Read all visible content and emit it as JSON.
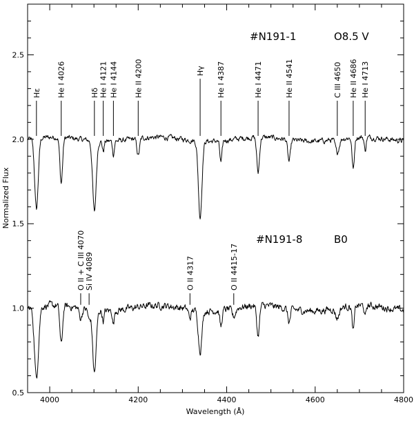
{
  "chart_data": {
    "type": "line",
    "xlabel": "Wavelength (Å)",
    "ylabel": "Normalized Flux",
    "xlim": [
      3950,
      4800
    ],
    "ylim": [
      0.5,
      2.8
    ],
    "x_ticks": [
      4000,
      4200,
      4400,
      4600,
      4800
    ],
    "x_tick_labels": [
      "4000",
      "4200",
      "4400",
      "4600",
      "4800"
    ],
    "x_minor_step": 50,
    "y_ticks": [
      0.5,
      1.0,
      1.5,
      2.0,
      2.5
    ],
    "y_tick_labels": [
      "0.5",
      "1.0",
      "1.5",
      "2.0",
      "2.5"
    ],
    "y_minor_step": 0.1,
    "grid": false,
    "series": [
      {
        "name": "#N191-1",
        "spectral_type": "O8.5 V",
        "continuum": 2.0,
        "noise": 0.015,
        "lines": [
          {
            "w": 3970,
            "depth": 0.42,
            "width": 4
          },
          {
            "w": 4026,
            "depth": 0.27,
            "width": 3
          },
          {
            "w": 4101,
            "depth": 0.42,
            "width": 4
          },
          {
            "w": 4121,
            "depth": 0.06,
            "width": 2
          },
          {
            "w": 4144,
            "depth": 0.08,
            "width": 2
          },
          {
            "w": 4200,
            "depth": 0.1,
            "width": 3
          },
          {
            "w": 4340,
            "depth": 0.45,
            "width": 4
          },
          {
            "w": 4387,
            "depth": 0.13,
            "width": 2.5
          },
          {
            "w": 4471,
            "depth": 0.21,
            "width": 3
          },
          {
            "w": 4541,
            "depth": 0.13,
            "width": 3
          },
          {
            "w": 4650,
            "depth": 0.08,
            "width": 4
          },
          {
            "w": 4686,
            "depth": 0.19,
            "width": 2.5
          },
          {
            "w": 4713,
            "depth": 0.08,
            "width": 2
          }
        ],
        "labels": [
          {
            "text": "Hε",
            "w": 3970,
            "y": 2.22
          },
          {
            "text": "He I 4026",
            "w": 4026,
            "y": 2.22
          },
          {
            "text": "Hδ",
            "w": 4101,
            "y": 2.22
          },
          {
            "text": "He I 4121",
            "w": 4121,
            "y": 2.22
          },
          {
            "text": "He I 4144",
            "w": 4144,
            "y": 2.22
          },
          {
            "text": "He II 4200",
            "w": 4200,
            "y": 2.22
          },
          {
            "text": "Hγ",
            "w": 4340,
            "y": 2.35
          },
          {
            "text": "He I 4387",
            "w": 4387,
            "y": 2.22
          },
          {
            "text": "He I 4471",
            "w": 4471,
            "y": 2.22
          },
          {
            "text": "He II 4541",
            "w": 4541,
            "y": 2.22
          },
          {
            "text": "C III 4650",
            "w": 4650,
            "y": 2.22
          },
          {
            "text": "He II 4686",
            "w": 4686,
            "y": 2.22
          },
          {
            "text": "He I 4713",
            "w": 4713,
            "y": 2.22
          }
        ]
      },
      {
        "name": "#N191-8",
        "spectral_type": "B0",
        "continuum": 1.0,
        "noise": 0.02,
        "lines": [
          {
            "w": 3970,
            "depth": 0.42,
            "width": 4.5
          },
          {
            "w": 4026,
            "depth": 0.23,
            "width": 3
          },
          {
            "w": 4070,
            "depth": 0.06,
            "width": 3
          },
          {
            "w": 4089,
            "depth": 0.06,
            "width": 2.5
          },
          {
            "w": 4101,
            "depth": 0.37,
            "width": 4
          },
          {
            "w": 4121,
            "depth": 0.06,
            "width": 2
          },
          {
            "w": 4144,
            "depth": 0.08,
            "width": 2
          },
          {
            "w": 4317,
            "depth": 0.05,
            "width": 3
          },
          {
            "w": 4340,
            "depth": 0.24,
            "width": 4
          },
          {
            "w": 4387,
            "depth": 0.1,
            "width": 2.5
          },
          {
            "w": 4416,
            "depth": 0.05,
            "width": 4
          },
          {
            "w": 4471,
            "depth": 0.18,
            "width": 3
          },
          {
            "w": 4541,
            "depth": 0.08,
            "width": 3
          },
          {
            "w": 4650,
            "depth": 0.06,
            "width": 4
          },
          {
            "w": 4686,
            "depth": 0.15,
            "width": 2.5
          },
          {
            "w": 4713,
            "depth": 0.07,
            "width": 2
          }
        ],
        "labels": [
          {
            "text": "O II + C III 4070",
            "w": 4070,
            "y": 1.08
          },
          {
            "text": "Si IV 4089",
            "w": 4089,
            "y": 1.08
          },
          {
            "text": "O II 4317",
            "w": 4317,
            "y": 1.08
          },
          {
            "text": "O II 4415-17",
            "w": 4416,
            "y": 1.08
          }
        ]
      }
    ]
  }
}
